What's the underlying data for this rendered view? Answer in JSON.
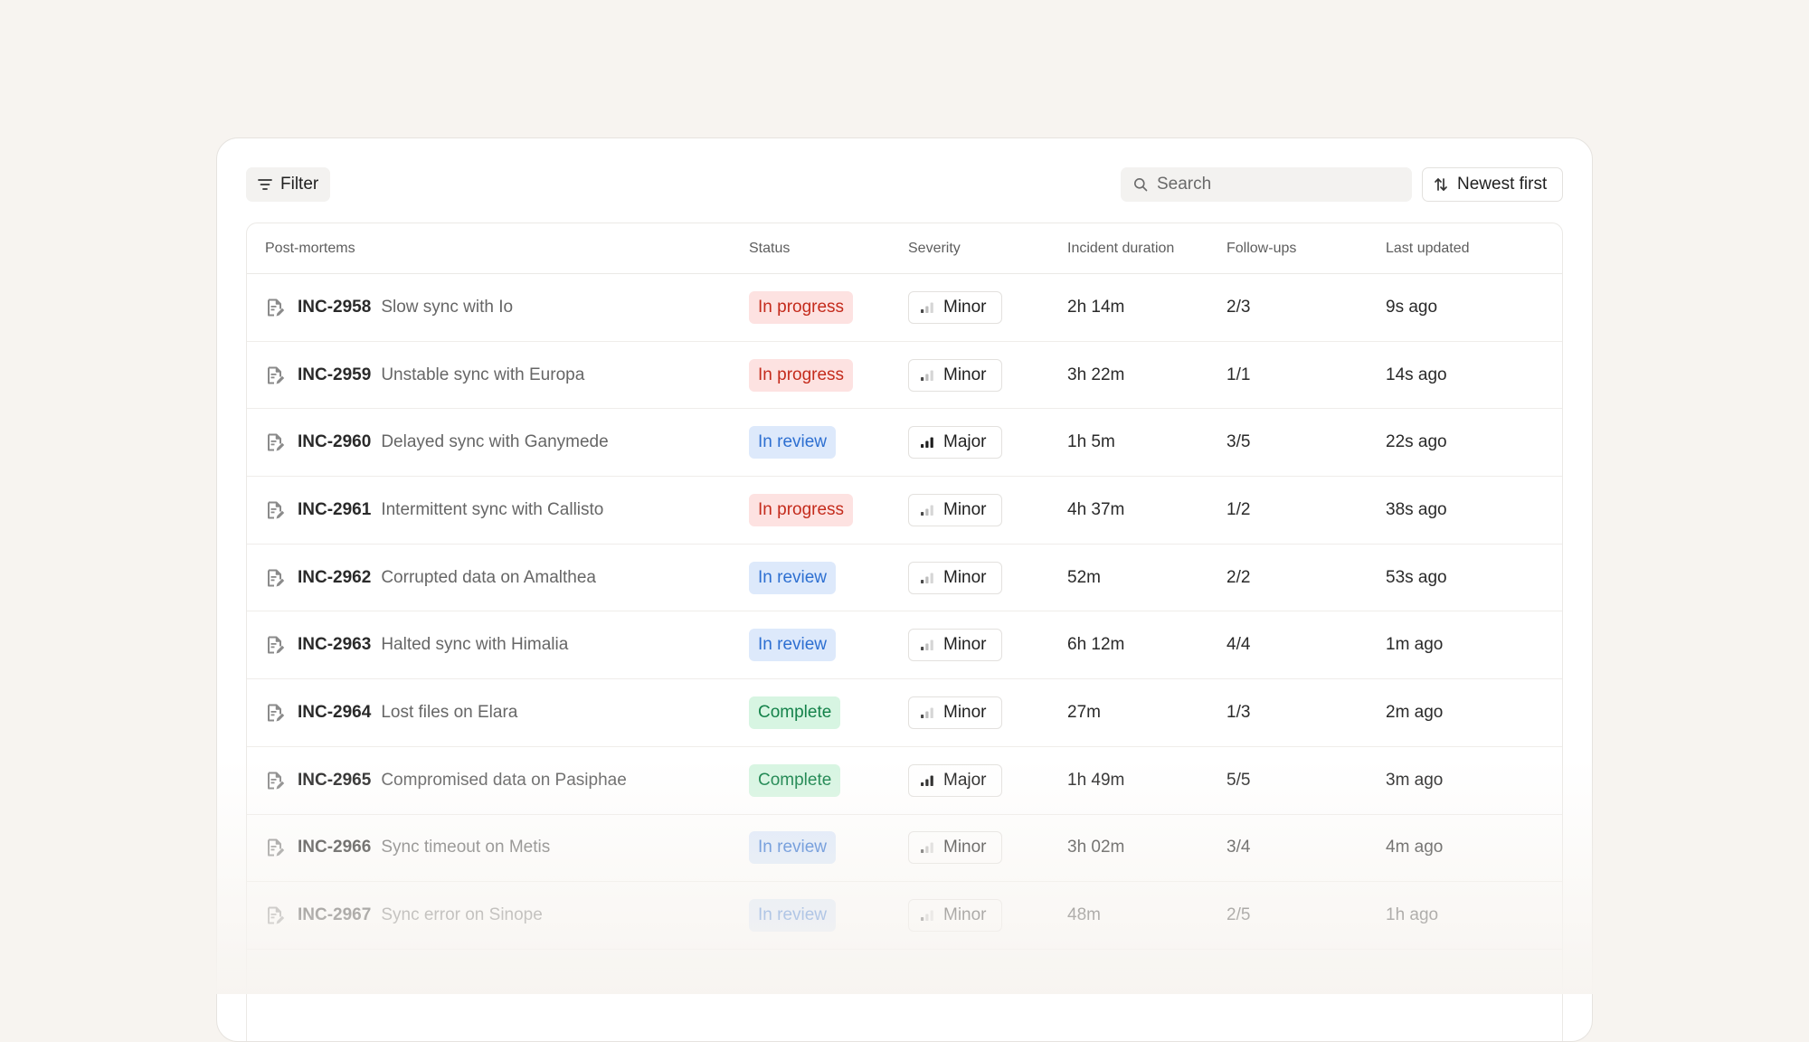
{
  "toolbar": {
    "filter_label": "Filter",
    "search_placeholder": "Search",
    "sort_label": "Newest first"
  },
  "table": {
    "columns": {
      "name": "Post-mortems",
      "status": "Status",
      "severity": "Severity",
      "duration": "Incident duration",
      "followups": "Follow-ups",
      "updated": "Last updated"
    },
    "rows": [
      {
        "id": "INC-2958",
        "title": "Slow sync with Io",
        "status": "In progress",
        "severity": "Minor",
        "duration": "2h 14m",
        "followups": "2/3",
        "updated": "9s ago"
      },
      {
        "id": "INC-2959",
        "title": "Unstable sync with Europa",
        "status": "In progress",
        "severity": "Minor",
        "duration": "3h 22m",
        "followups": "1/1",
        "updated": "14s ago"
      },
      {
        "id": "INC-2960",
        "title": "Delayed sync with Ganymede",
        "status": "In review",
        "severity": "Major",
        "duration": "1h 5m",
        "followups": "3/5",
        "updated": "22s ago"
      },
      {
        "id": "INC-2961",
        "title": "Intermittent sync with Callisto",
        "status": "In progress",
        "severity": "Minor",
        "duration": "4h 37m",
        "followups": "1/2",
        "updated": "38s ago"
      },
      {
        "id": "INC-2962",
        "title": "Corrupted data on Amalthea",
        "status": "In review",
        "severity": "Minor",
        "duration": "52m",
        "followups": "2/2",
        "updated": "53s ago"
      },
      {
        "id": "INC-2963",
        "title": "Halted sync with Himalia",
        "status": "In review",
        "severity": "Minor",
        "duration": "6h 12m",
        "followups": "4/4",
        "updated": "1m ago"
      },
      {
        "id": "INC-2964",
        "title": "Lost files on Elara",
        "status": "Complete",
        "severity": "Minor",
        "duration": "27m",
        "followups": "1/3",
        "updated": "2m ago"
      },
      {
        "id": "INC-2965",
        "title": "Compromised data on Pasiphae",
        "status": "Complete",
        "severity": "Major",
        "duration": "1h 49m",
        "followups": "5/5",
        "updated": "3m ago"
      },
      {
        "id": "INC-2966",
        "title": "Sync timeout on Metis",
        "status": "In review",
        "severity": "Minor",
        "duration": "3h 02m",
        "followups": "3/4",
        "updated": "4m ago"
      },
      {
        "id": "INC-2967",
        "title": "Sync error on Sinope",
        "status": "In review",
        "severity": "Minor",
        "duration": "48m",
        "followups": "2/5",
        "updated": "1h ago"
      }
    ]
  },
  "icons": {
    "filter": "filter-icon",
    "search": "search-icon",
    "sort": "sort-arrows-icon",
    "document": "document-edit-icon",
    "severity": "signal-bars-icon"
  },
  "colors": {
    "in_progress_bg": "#fde2e1",
    "in_progress_text": "#c42b1c",
    "in_review_bg": "#dde9fb",
    "in_review_text": "#2d6fd1",
    "complete_bg": "#d7f5e2",
    "complete_text": "#14824a"
  }
}
